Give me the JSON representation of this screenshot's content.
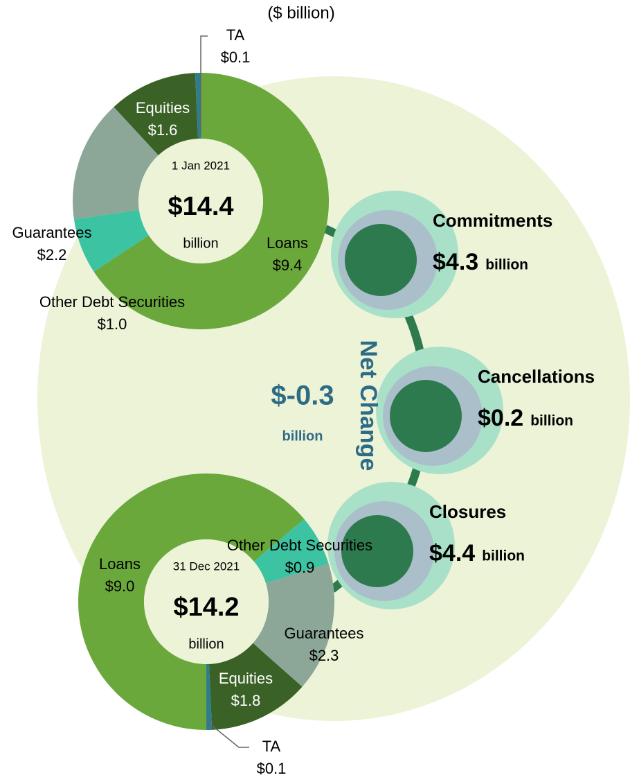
{
  "subtitle": "($ billion)",
  "chart_data": [
    {
      "type": "pie",
      "donut": true,
      "date": "1 Jan 2021",
      "total": 14.4,
      "total_label": "$14.4",
      "unit": "billion",
      "categories": [
        "Loans",
        "Other Debt Securities",
        "Guarantees",
        "Equities",
        "TA"
      ],
      "values": [
        9.4,
        1.0,
        2.2,
        1.6,
        0.1
      ],
      "value_labels": [
        "$9.4",
        "$1.0",
        "$2.2",
        "$1.6",
        "$0.1"
      ],
      "colors": [
        "#6aa83c",
        "#3cc4a2",
        "#8ca797",
        "#3b6226",
        "#2f7d8c"
      ]
    },
    {
      "type": "pie",
      "donut": true,
      "date": "31 Dec 2021",
      "total": 14.2,
      "total_label": "$14.2",
      "unit": "billion",
      "categories": [
        "Other Debt Securities",
        "Guarantees",
        "Equities",
        "TA",
        "Loans"
      ],
      "values": [
        0.9,
        2.3,
        1.8,
        0.1,
        9.0
      ],
      "value_labels": [
        "$0.9",
        "$2.3",
        "$1.8",
        "$0.1",
        "$9.0"
      ],
      "colors": [
        "#3cc4a2",
        "#8ca797",
        "#3b6226",
        "#2f7d8c",
        "#6aa83c"
      ]
    }
  ],
  "flows": [
    {
      "name": "Commitments",
      "value": 4.3,
      "value_label": "$4.3",
      "unit": "billion"
    },
    {
      "name": "Cancellations",
      "value": 0.2,
      "value_label": "$0.2",
      "unit": "billion"
    },
    {
      "name": "Closures",
      "value": 4.4,
      "value_label": "$4.4",
      "unit": "billion"
    }
  ],
  "net_change": {
    "title": "Net Change",
    "value": -0.3,
    "value_label": "$-0.3",
    "unit": "billion"
  }
}
